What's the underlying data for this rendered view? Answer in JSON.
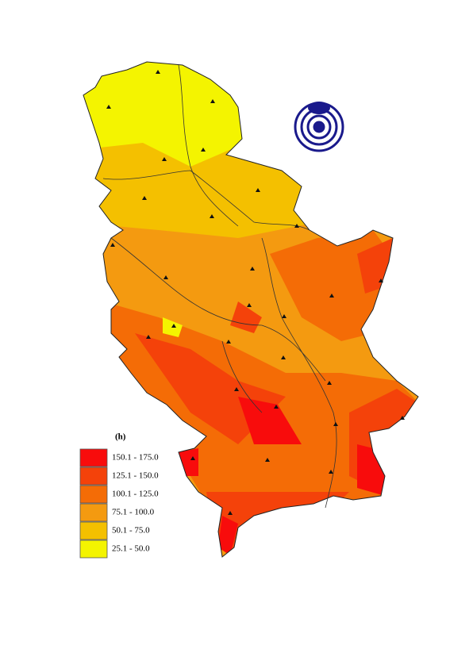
{
  "legend": {
    "title": "(h)",
    "items": [
      {
        "label": "150.1 - 175.0",
        "color": "#f80c0c"
      },
      {
        "label": "125.1 - 150.0",
        "color": "#f4420a"
      },
      {
        "label": "100.1 - 125.0",
        "color": "#f46c06"
      },
      {
        "label": "75.1 - 100.0",
        "color": "#f49a10"
      },
      {
        "label": "50.1 - 75.0",
        "color": "#f4c000"
      },
      {
        "label": "25.1 - 50.0",
        "color": "#f4f400"
      }
    ]
  }
}
